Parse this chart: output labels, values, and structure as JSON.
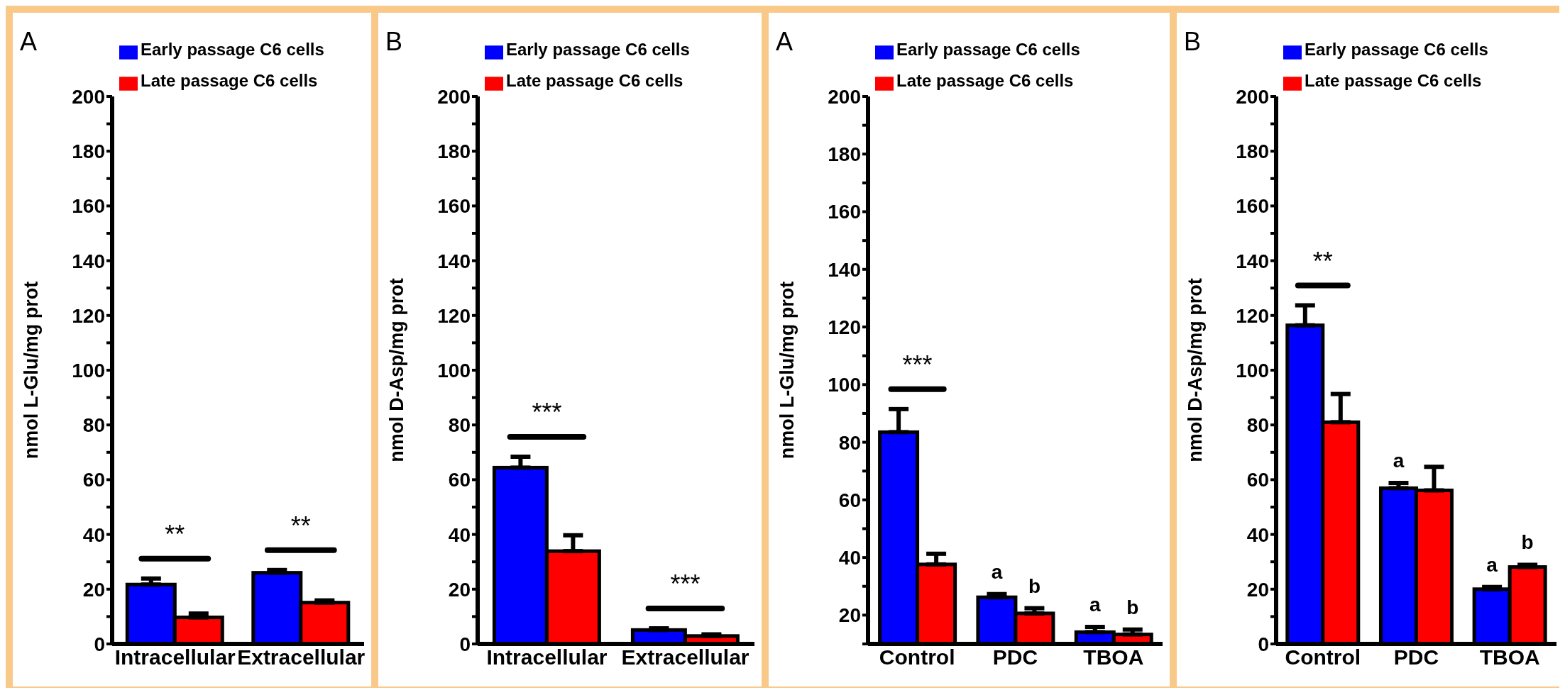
{
  "chart_data": [
    {
      "type": "bar",
      "title": "A",
      "ylabel": "nmol L-Glu/mg prot",
      "categories": [
        "Intracellular",
        "Extracellular"
      ],
      "series": [
        {
          "name": "Early passage C6 cells",
          "color": "#0000ff",
          "values": [
            21.7,
            26
          ],
          "errors": [
            2.2,
            1
          ]
        },
        {
          "name": "Late passage C6 cells",
          "color": "#ff0000",
          "values": [
            9.7,
            15.1
          ],
          "errors": [
            1.4,
            0.8
          ]
        }
      ],
      "ylim": [
        0,
        200
      ],
      "yticks": [
        0,
        {
          "value": 10,
          "label": null
        },
        20,
        {
          "value": 30,
          "label": null
        },
        40,
        {
          "value": 50,
          "label": null
        },
        60,
        {
          "value": 70,
          "label": null
        },
        80,
        {
          "value": 90,
          "label": null
        },
        100,
        {
          "value": 110,
          "label": null
        },
        120,
        {
          "value": 130,
          "label": null
        },
        140,
        {
          "value": 150,
          "label": null
        },
        160,
        {
          "value": 170,
          "label": null
        },
        180,
        {
          "value": 190,
          "label": null
        },
        200
      ],
      "annotations": [
        {
          "text": "**",
          "x": "Intracellular",
          "y": 21.7
        },
        {
          "text": "**",
          "x": "Extracellular",
          "y": 26
        }
      ],
      "legend": "top left",
      "grid": false
    },
    {
      "type": "bar",
      "title": "B",
      "ylabel": "nmol D-Asp/mg prot",
      "categories": [
        "Intracellular",
        "Extracellular"
      ],
      "series": [
        {
          "name": "Early passage C6 cells",
          "color": "#0000ff",
          "values": [
            64.4,
            5.1
          ],
          "errors": [
            4,
            0.6
          ]
        },
        {
          "name": "Late passage C6 cells",
          "color": "#ff0000",
          "values": [
            33.9,
            2.9
          ],
          "errors": [
            5.8,
            0.6
          ]
        }
      ],
      "ylim": [
        0,
        200
      ],
      "yticks": [
        0,
        {
          "value": 10,
          "label": null
        },
        20,
        {
          "value": 30,
          "label": null
        },
        40,
        {
          "value": 50,
          "label": null
        },
        60,
        {
          "value": 70,
          "label": null
        },
        80,
        {
          "value": 90,
          "label": null
        },
        100,
        {
          "value": 110,
          "label": null
        },
        120,
        {
          "value": 130,
          "label": null
        },
        140,
        {
          "value": 150,
          "label": null
        },
        160,
        {
          "value": 170,
          "label": null
        },
        180,
        {
          "value": 190,
          "label": null
        },
        200
      ],
      "annotations": [
        {
          "text": "***",
          "x": "Intracellular",
          "y": 64.4
        },
        {
          "text": "***",
          "x": "Extracellular",
          "y": 5.1
        }
      ],
      "legend": "top left",
      "grid": false
    },
    {
      "type": "bar",
      "title": "A",
      "ylabel": "nmol L-Glu/mg prot",
      "categories": [
        "Control",
        "PDC",
        "TBOA"
      ],
      "series": [
        {
          "name": "Early passage C6 cells",
          "color": "#0000ff",
          "values": [
            83.5,
            26.2,
            14.1
          ],
          "errors": [
            8,
            1.1,
            1.8
          ]
        },
        {
          "name": "Late passage C6 cells",
          "color": "#ff0000",
          "values": [
            37.6,
            20.6,
            13.3
          ],
          "errors": [
            3.7,
            1.8,
            1.7
          ]
        }
      ],
      "ylim": [
        10,
        200
      ],
      "yticks": [
        {
          "value": 10,
          "label": null
        },
        20,
        {
          "value": 30,
          "label": null
        },
        40,
        {
          "value": 50,
          "label": null
        },
        60,
        {
          "value": 70,
          "label": null
        },
        80,
        {
          "value": 90,
          "label": null
        },
        100,
        {
          "value": 110,
          "label": null
        },
        120,
        {
          "value": 130,
          "label": null
        },
        140,
        {
          "value": 150,
          "label": null
        },
        160,
        {
          "value": 170,
          "label": null
        },
        180,
        {
          "value": 190,
          "label": null
        },
        200
      ],
      "annotations": [
        {
          "text": "***",
          "x": "Control",
          "y": 83.5
        },
        {
          "text": "a",
          "x": "PDC",
          "y": 26.2
        },
        {
          "text": "b",
          "x": "PDC",
          "y": 20.6
        },
        {
          "text": "a",
          "x": "TBOA",
          "y": 14.1
        },
        {
          "text": "b",
          "x": "TBOA",
          "y": 13.3
        }
      ],
      "legend": "top left",
      "grid": false
    },
    {
      "type": "bar",
      "title": "B",
      "ylabel": "nmol D-Asp/mg prot",
      "categories": [
        "Control",
        "PDC",
        "TBOA"
      ],
      "series": [
        {
          "name": "Early passage C6 cells",
          "color": "#0000ff",
          "values": [
            116.4,
            56.9,
            20
          ],
          "errors": [
            7.3,
            1.9,
            0.8
          ]
        },
        {
          "name": "Late passage C6 cells",
          "color": "#ff0000",
          "values": [
            81,
            56.1,
            28.1
          ],
          "errors": [
            10.3,
            8.6,
            0.8
          ]
        }
      ],
      "ylim": [
        0,
        200
      ],
      "yticks": [
        0,
        {
          "value": 10,
          "label": null
        },
        20,
        {
          "value": 30,
          "label": null
        },
        40,
        {
          "value": 50,
          "label": null
        },
        60,
        {
          "value": 70,
          "label": null
        },
        80,
        {
          "value": 90,
          "label": null
        },
        100,
        {
          "value": 110,
          "label": null
        },
        120,
        {
          "value": 130,
          "label": null
        },
        140,
        {
          "value": 150,
          "label": null
        },
        160,
        {
          "value": 170,
          "label": null
        },
        180,
        {
          "value": 190,
          "label": null
        },
        200
      ],
      "annotations": [
        {
          "text": "**",
          "x": "Control",
          "y": 116.4
        },
        {
          "text": "a",
          "x": "PDC",
          "y": 56.9
        },
        {
          "text": "a",
          "x": "TBOA",
          "y": 20
        },
        {
          "text": "b",
          "x": "TBOA",
          "y": 28.1
        }
      ],
      "legend": "top left",
      "grid": false
    }
  ]
}
